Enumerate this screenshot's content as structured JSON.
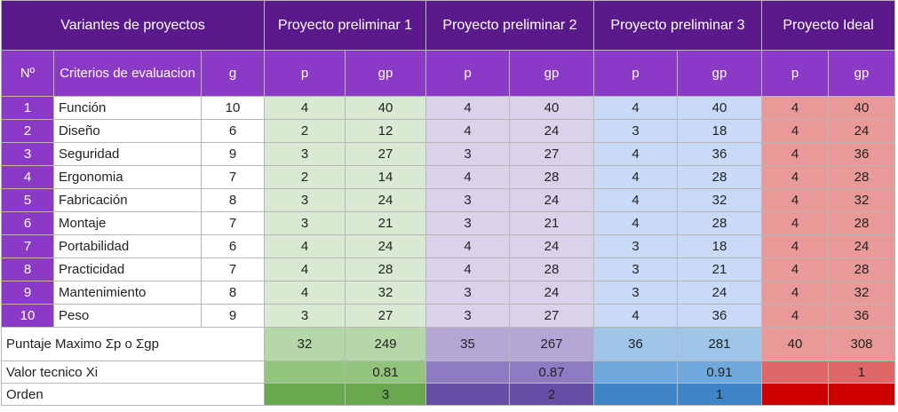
{
  "table": {
    "title": "Variantes de proyectos",
    "projects": [
      "Proyecto preliminar 1",
      "Proyecto preliminar 2",
      "Proyecto preliminar 3",
      "Proyecto Ideal"
    ],
    "headers": {
      "num": "Nº",
      "criteria": "Criterios de evaluacion",
      "g": "g",
      "p": "p",
      "gp": "gp"
    },
    "rows": [
      {
        "n": "1",
        "name": "Función",
        "g": "10",
        "vals": [
          "4",
          "40",
          "4",
          "40",
          "4",
          "40",
          "4",
          "40"
        ]
      },
      {
        "n": "2",
        "name": "Diseño",
        "g": "6",
        "vals": [
          "2",
          "12",
          "4",
          "24",
          "3",
          "18",
          "4",
          "24"
        ]
      },
      {
        "n": "3",
        "name": "Seguridad",
        "g": "9",
        "vals": [
          "3",
          "27",
          "3",
          "27",
          "4",
          "36",
          "4",
          "36"
        ]
      },
      {
        "n": "4",
        "name": "Ergonomia",
        "g": "7",
        "vals": [
          "2",
          "14",
          "4",
          "28",
          "4",
          "28",
          "4",
          "28"
        ]
      },
      {
        "n": "5",
        "name": "Fabricación",
        "g": "8",
        "vals": [
          "3",
          "24",
          "3",
          "24",
          "4",
          "32",
          "4",
          "32"
        ]
      },
      {
        "n": "6",
        "name": "Montaje",
        "g": "7",
        "vals": [
          "3",
          "21",
          "3",
          "21",
          "4",
          "28",
          "4",
          "28"
        ]
      },
      {
        "n": "7",
        "name": "Portabilidad",
        "g": "6",
        "vals": [
          "4",
          "24",
          "4",
          "24",
          "3",
          "18",
          "4",
          "24"
        ]
      },
      {
        "n": "8",
        "name": "Practicidad",
        "g": "7",
        "vals": [
          "4",
          "28",
          "4",
          "28",
          "3",
          "21",
          "4",
          "28"
        ]
      },
      {
        "n": "9",
        "name": "Mantenimiento",
        "g": "8",
        "vals": [
          "4",
          "32",
          "3",
          "24",
          "3",
          "24",
          "4",
          "32"
        ]
      },
      {
        "n": "10",
        "name": "Peso",
        "g": "9",
        "vals": [
          "3",
          "27",
          "3",
          "27",
          "4",
          "36",
          "4",
          "36"
        ]
      }
    ],
    "totals": {
      "label": "Puntaje Maximo Σp o Σgp",
      "vals": [
        "32",
        "249",
        "35",
        "267",
        "36",
        "281",
        "40",
        "308"
      ]
    },
    "technical": {
      "label": "Valor tecnico Xi",
      "vals": [
        "0.81",
        "0.87",
        "0.91",
        "1"
      ]
    },
    "order": {
      "label": "Orden",
      "vals": [
        "3",
        "2",
        "1",
        ""
      ]
    }
  }
}
